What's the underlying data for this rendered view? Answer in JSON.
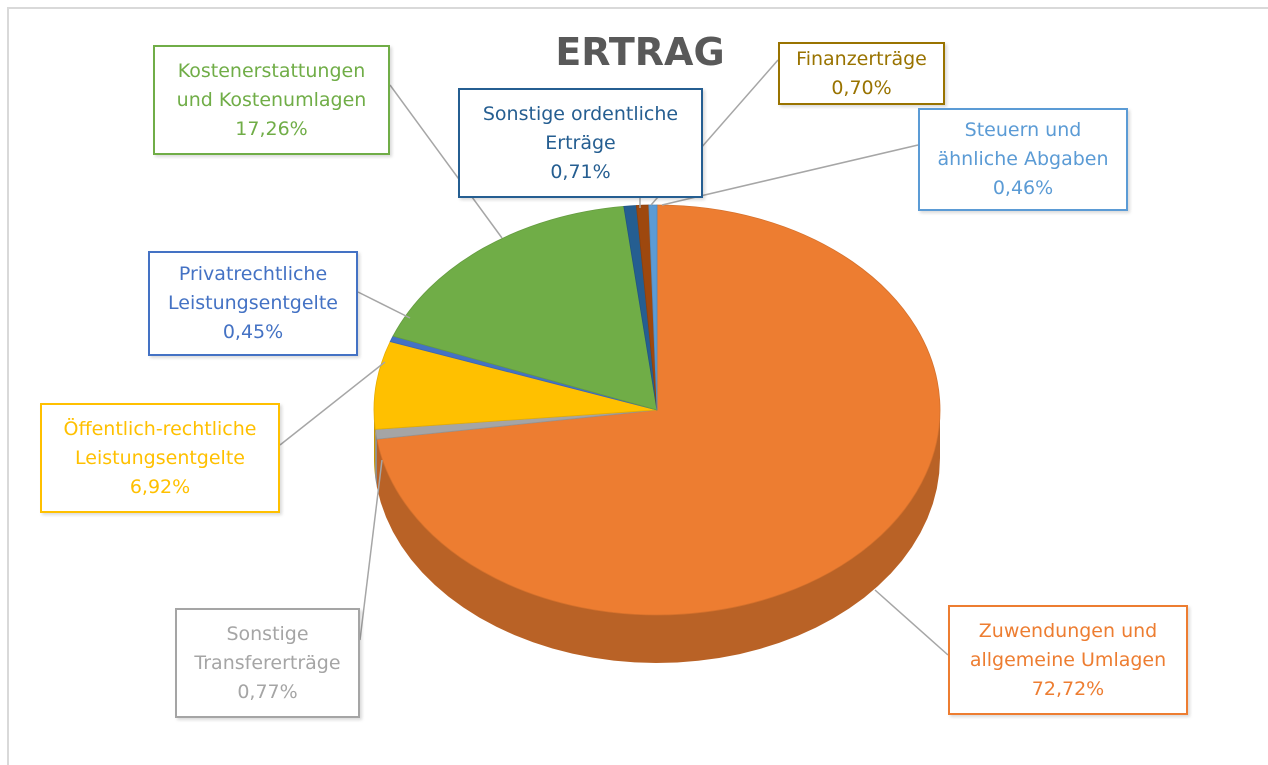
{
  "chart_data": {
    "type": "pie",
    "title": "ERTRAG",
    "categories": [
      "Zuwendungen und allgemeine Umlagen",
      "Sonstige Transfererträge",
      "Öffentlich-rechtliche Leistungsentgelte",
      "Privatrechtliche Leistungsentgelte",
      "Kostenerstattungen und Kostenumlagen",
      "Sonstige ordentliche Erträge",
      "Finanzerträge",
      "Steuern und ähnliche Abgaben"
    ],
    "values": [
      72.72,
      0.77,
      6.92,
      0.45,
      17.26,
      0.71,
      0.7,
      0.46
    ],
    "value_labels": [
      "72,72%",
      "0,77%",
      "6,92%",
      "0,45%",
      "17,26%",
      "0,71%",
      "0,70%",
      "0,46%"
    ],
    "colors": [
      "#ed7d31",
      "#a5a5a5",
      "#ffc000",
      "#4472c4",
      "#70ad47",
      "#255e91",
      "#9e480e",
      "#5b9bd5"
    ],
    "label_colors": [
      "#ed7d31",
      "#a5a5a5",
      "#ffc000",
      "#4472c4",
      "#70ad47",
      "#255e91",
      "#997300",
      "#5b9bd5"
    ]
  }
}
